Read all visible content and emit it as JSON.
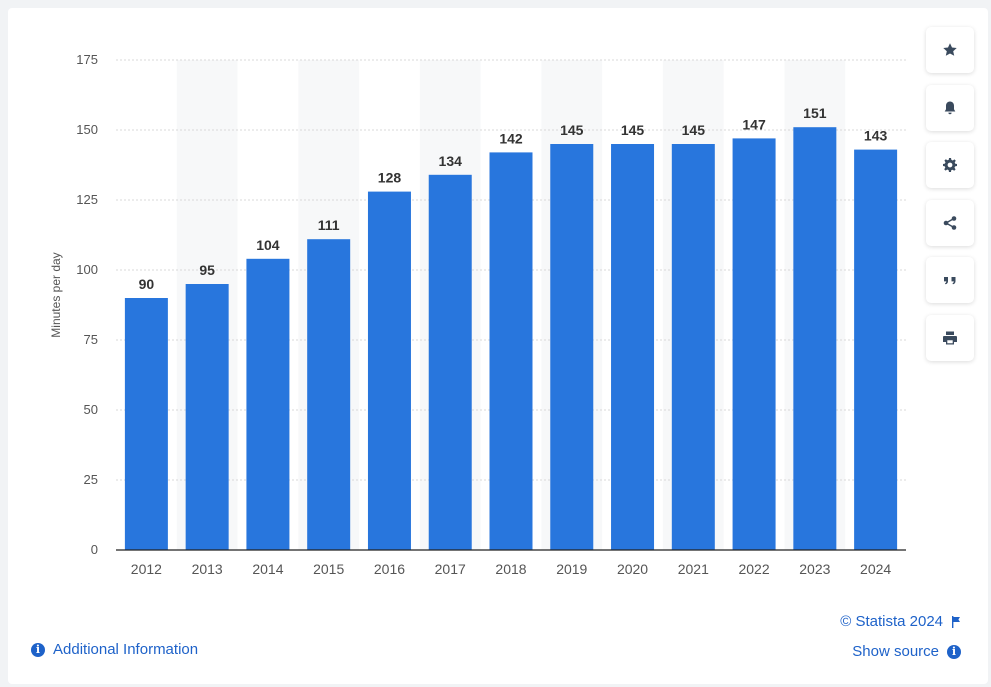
{
  "toolbar": {
    "buttons": [
      {
        "icon": "star-icon"
      },
      {
        "icon": "bell-icon"
      },
      {
        "icon": "gear-icon"
      },
      {
        "icon": "share-icon"
      },
      {
        "icon": "quote-icon"
      },
      {
        "icon": "print-icon"
      }
    ]
  },
  "footer": {
    "additional_info": "Additional Information",
    "copyright": "© Statista 2024",
    "show_source": "Show source"
  },
  "colors": {
    "bar": "#2876dd",
    "band": "#f7f8f9",
    "grid": "#d9d9d9",
    "label": "#333333",
    "tick": "#555555",
    "link": "#1e62c9"
  },
  "chart_data": {
    "type": "bar",
    "categories": [
      "2012",
      "2013",
      "2014",
      "2015",
      "2016",
      "2017",
      "2018",
      "2019",
      "2020",
      "2021",
      "2022",
      "2023",
      "2024"
    ],
    "values": [
      90,
      95,
      104,
      111,
      128,
      134,
      142,
      145,
      145,
      145,
      147,
      151,
      143
    ],
    "title": "",
    "xlabel": "",
    "ylabel": "Minutes per day",
    "ylim": [
      0,
      175
    ],
    "yticks": [
      0,
      25,
      50,
      75,
      100,
      125,
      150,
      175
    ],
    "grid": true,
    "data_labels": true
  }
}
